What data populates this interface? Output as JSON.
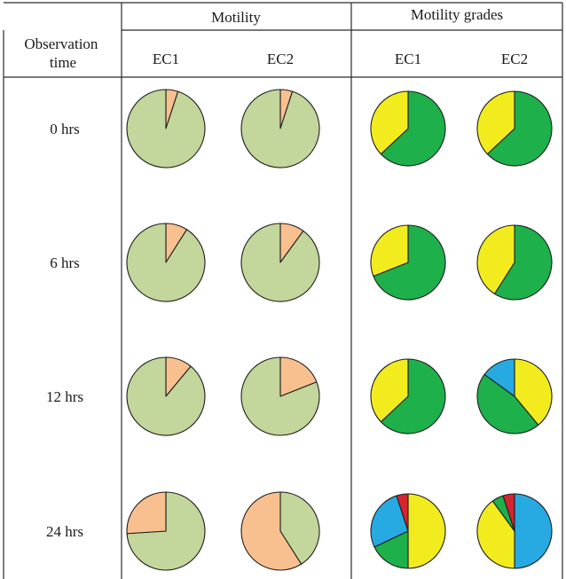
{
  "table": {
    "header_motility": "Motility",
    "header_grades": "Motility grades",
    "col_observation": [
      "Observation",
      "time"
    ],
    "col_ec1": "EC1",
    "col_ec2": "EC2",
    "col_ec1_grades": "EC1",
    "col_ec2_grades": "EC2"
  },
  "colors": {
    "motile": "#c3d69b",
    "non_motile": "#f9c08f",
    "grade_green": "#1db04b",
    "grade_yellow": "#f2ec1e",
    "grade_blue": "#27a9e1",
    "grade_red": "#d5232f"
  },
  "chart_data": {
    "type": "pie",
    "row_labels": [
      "0 hrs",
      "6 hrs",
      "12 hrs",
      "24 hrs"
    ],
    "charts": [
      {
        "group": "Motility",
        "column": "EC1",
        "row": "0 hrs",
        "slices": [
          {
            "color": "non_motile",
            "value": 5
          },
          {
            "color": "motile",
            "value": 95
          }
        ]
      },
      {
        "group": "Motility",
        "column": "EC2",
        "row": "0 hrs",
        "slices": [
          {
            "color": "non_motile",
            "value": 5
          },
          {
            "color": "motile",
            "value": 95
          }
        ]
      },
      {
        "group": "Motility grades",
        "column": "EC1",
        "row": "0 hrs",
        "slices": [
          {
            "color": "grade_green",
            "value": 63
          },
          {
            "color": "grade_yellow",
            "value": 37
          }
        ]
      },
      {
        "group": "Motility grades",
        "column": "EC2",
        "row": "0 hrs",
        "slices": [
          {
            "color": "grade_green",
            "value": 63
          },
          {
            "color": "grade_yellow",
            "value": 37
          }
        ]
      },
      {
        "group": "Motility",
        "column": "EC1",
        "row": "6 hrs",
        "slices": [
          {
            "color": "non_motile",
            "value": 9
          },
          {
            "color": "motile",
            "value": 91
          }
        ]
      },
      {
        "group": "Motility",
        "column": "EC2",
        "row": "6 hrs",
        "slices": [
          {
            "color": "non_motile",
            "value": 10
          },
          {
            "color": "motile",
            "value": 90
          }
        ]
      },
      {
        "group": "Motility grades",
        "column": "EC1",
        "row": "6 hrs",
        "slices": [
          {
            "color": "grade_green",
            "value": 69
          },
          {
            "color": "grade_yellow",
            "value": 31
          }
        ]
      },
      {
        "group": "Motility grades",
        "column": "EC2",
        "row": "6 hrs",
        "slices": [
          {
            "color": "grade_green",
            "value": 59
          },
          {
            "color": "grade_yellow",
            "value": 41
          }
        ]
      },
      {
        "group": "Motility",
        "column": "EC1",
        "row": "12 hrs",
        "slices": [
          {
            "color": "non_motile",
            "value": 11
          },
          {
            "color": "motile",
            "value": 89
          }
        ]
      },
      {
        "group": "Motility",
        "column": "EC2",
        "row": "12 hrs",
        "slices": [
          {
            "color": "non_motile",
            "value": 19
          },
          {
            "color": "motile",
            "value": 81
          }
        ]
      },
      {
        "group": "Motility grades",
        "column": "EC1",
        "row": "12 hrs",
        "slices": [
          {
            "color": "grade_green",
            "value": 63
          },
          {
            "color": "grade_yellow",
            "value": 37
          }
        ]
      },
      {
        "group": "Motility grades",
        "column": "EC2",
        "row": "12 hrs",
        "slices": [
          {
            "color": "grade_yellow",
            "value": 39
          },
          {
            "color": "grade_green",
            "value": 46
          },
          {
            "color": "grade_blue",
            "value": 15
          }
        ]
      },
      {
        "group": "Motility",
        "column": "EC1",
        "row": "24 hrs",
        "slices": [
          {
            "color": "motile",
            "value": 74
          },
          {
            "color": "non_motile",
            "value": 26
          }
        ]
      },
      {
        "group": "Motility",
        "column": "EC2",
        "row": "24 hrs",
        "slices": [
          {
            "color": "motile",
            "value": 41
          },
          {
            "color": "non_motile",
            "value": 59
          }
        ]
      },
      {
        "group": "Motility grades",
        "column": "EC1",
        "row": "24 hrs",
        "slices": [
          {
            "color": "grade_yellow",
            "value": 50
          },
          {
            "color": "grade_green",
            "value": 18
          },
          {
            "color": "grade_blue",
            "value": 27
          },
          {
            "color": "grade_red",
            "value": 5
          }
        ]
      },
      {
        "group": "Motility grades",
        "column": "EC2",
        "row": "24 hrs",
        "slices": [
          {
            "color": "grade_blue",
            "value": 50
          },
          {
            "color": "grade_yellow",
            "value": 40
          },
          {
            "color": "grade_green",
            "value": 5
          },
          {
            "color": "grade_red",
            "value": 5
          }
        ]
      }
    ]
  }
}
